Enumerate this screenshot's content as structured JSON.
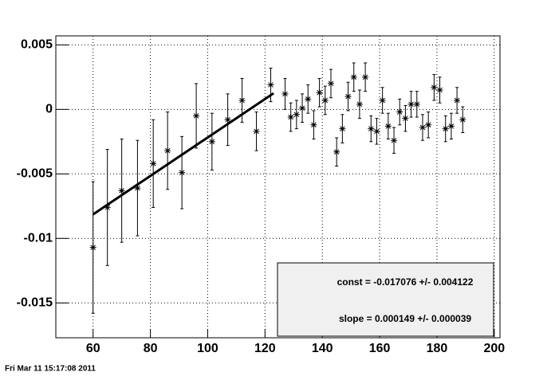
{
  "chart_data": {
    "type": "scatter",
    "x": [
      60,
      65,
      70,
      75.5,
      81,
      86,
      91,
      96,
      101.5,
      107,
      112,
      117,
      122,
      127,
      129,
      131,
      133,
      135,
      137,
      139,
      141,
      143,
      145,
      147,
      149,
      151,
      153,
      155,
      157,
      159,
      161,
      163,
      165,
      167,
      169,
      171,
      173,
      175,
      177,
      179,
      181,
      183,
      185,
      187,
      189
    ],
    "values": [
      -0.0107,
      -0.0076,
      -0.0063,
      -0.0061,
      -0.0042,
      -0.0032,
      -0.0049,
      -0.0005,
      -0.0025,
      -0.0008,
      0.0007,
      -0.0017,
      0.0019,
      0.0012,
      -0.0006,
      -0.0004,
      0.0001,
      0.0008,
      -0.0012,
      0.0013,
      0.0007,
      0.002,
      -0.0033,
      -0.0015,
      0.001,
      0.0025,
      0.0004,
      0.0025,
      -0.0015,
      -0.0017,
      0.0007,
      -0.0013,
      -0.0024,
      -0.0002,
      -0.0007,
      0.0004,
      0.0004,
      -0.0014,
      -0.0012,
      0.0017,
      0.0015,
      -0.0015,
      -0.0013,
      0.0007,
      -0.0008
    ],
    "errors": [
      0.0051,
      0.0045,
      0.004,
      0.0037,
      0.0034,
      0.003,
      0.0028,
      0.0025,
      0.0022,
      0.002,
      0.0017,
      0.0015,
      0.0013,
      0.0012,
      0.0011,
      0.0011,
      0.0011,
      0.0011,
      0.0011,
      0.0011,
      0.0011,
      0.0011,
      0.0011,
      0.0011,
      0.0011,
      0.0011,
      0.0011,
      0.0011,
      0.001,
      0.001,
      0.001,
      0.001,
      0.001,
      0.001,
      0.001,
      0.001,
      0.001,
      0.001,
      0.001,
      0.001,
      0.001,
      0.001,
      0.001,
      0.001,
      0.001
    ],
    "color": "#000000",
    "fit": {
      "const": -0.017076,
      "slope": 0.000149,
      "x_range": [
        60,
        123
      ]
    },
    "stats": [
      "const = -0.017076 +/- 0.004122",
      "slope = 0.000149 +/- 0.000039"
    ],
    "xlim": [
      47,
      202
    ],
    "ylim": [
      -0.0177,
      0.0057
    ],
    "xticks": [
      60,
      80,
      100,
      120,
      140,
      160,
      180,
      200
    ],
    "yticks": [
      0.005,
      0,
      -0.005,
      -0.01,
      -0.015
    ],
    "grid": true
  },
  "footer": {
    "timestamp": "Fri Mar 11 15:17:08 2011"
  }
}
